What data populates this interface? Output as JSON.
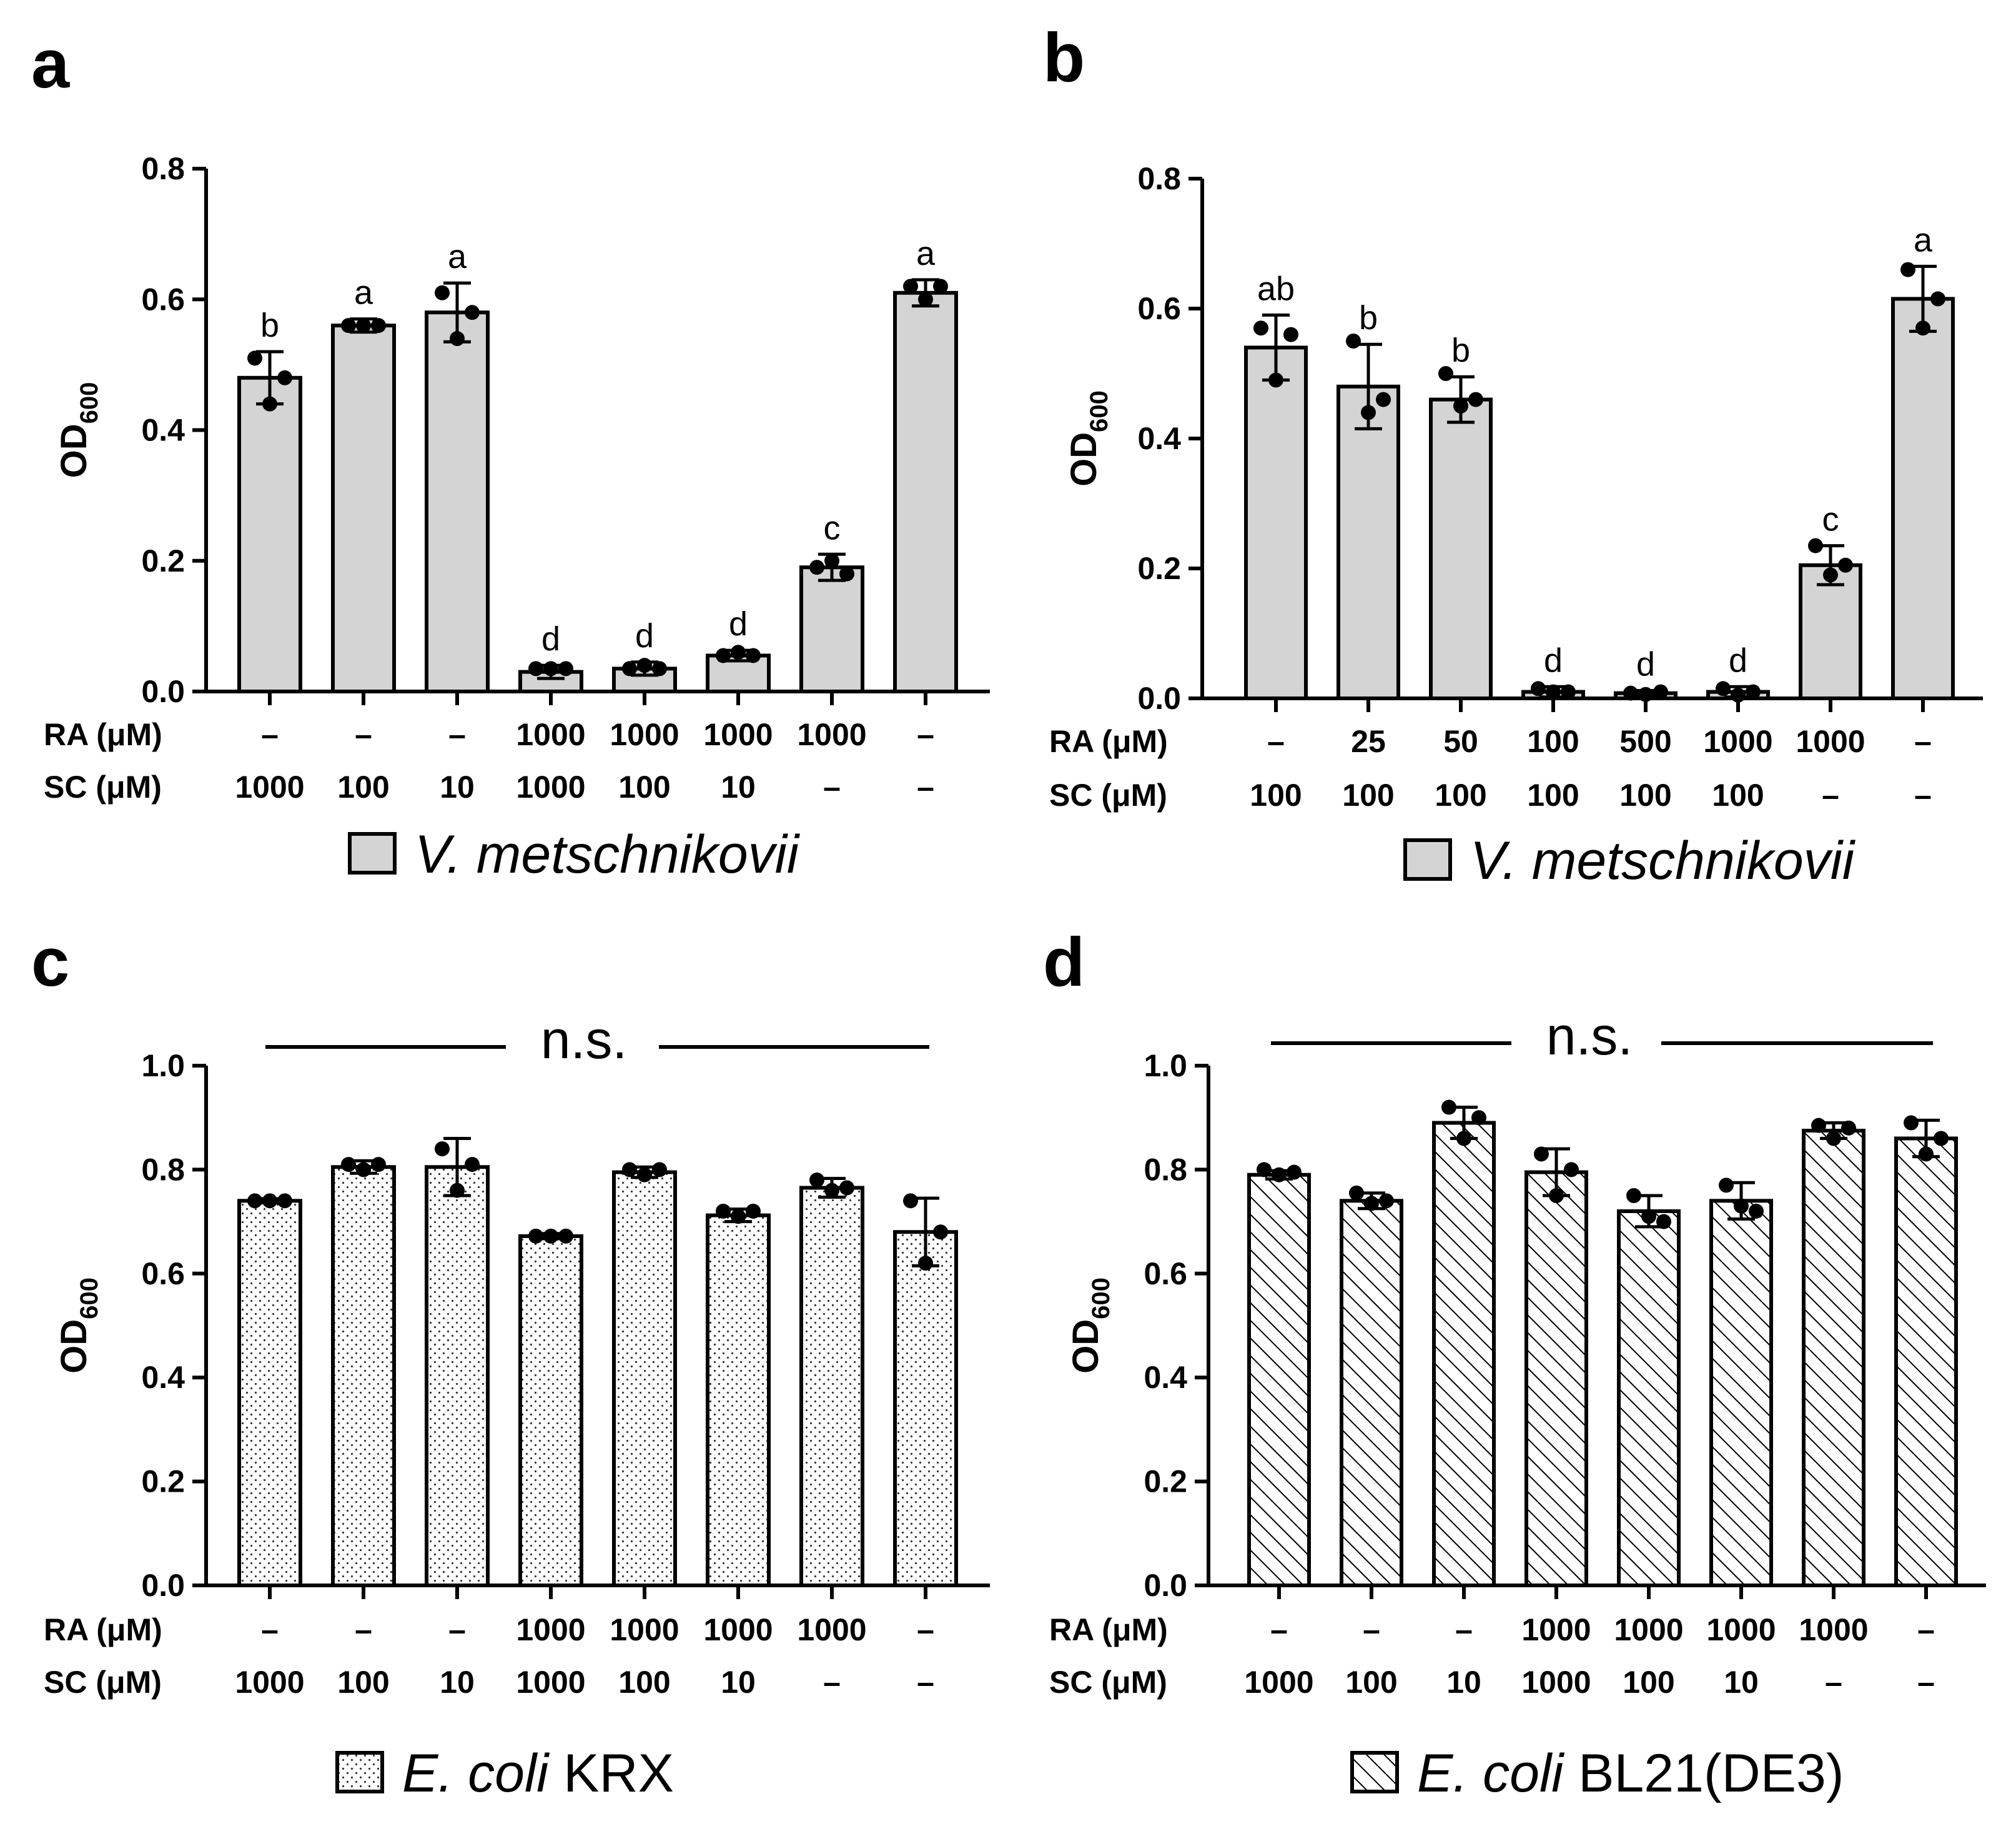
{
  "colors": {
    "bar_fill": "#d4d4d4",
    "stroke": "#000000",
    "background": "#ffffff"
  },
  "chart_data": [
    {
      "panel": "a",
      "type": "bar",
      "pattern": "solid",
      "ylabel": "OD600",
      "ylabel_main": "OD",
      "ylabel_sub": "600",
      "ylim": [
        0,
        0.8
      ],
      "yticks": [
        "0.0",
        "0.2",
        "0.4",
        "0.6",
        "0.8"
      ],
      "row_labels": [
        "RA (μM)",
        "SC (μM)"
      ],
      "ra": [
        "–",
        "–",
        "–",
        "1000",
        "1000",
        "1000",
        "1000",
        "–"
      ],
      "sc": [
        "1000",
        "100",
        "10",
        "1000",
        "100",
        "10",
        "–",
        "–"
      ],
      "values": [
        0.48,
        0.56,
        0.58,
        0.03,
        0.035,
        0.055,
        0.19,
        0.61
      ],
      "errors": [
        0.04,
        0.01,
        0.045,
        0.01,
        0.01,
        0.008,
        0.02,
        0.02
      ],
      "points": [
        [
          0.51,
          0.44,
          0.48
        ],
        [
          0.56,
          0.56,
          0.56
        ],
        [
          0.61,
          0.54,
          0.58
        ],
        [
          0.035,
          0.035,
          0.035
        ],
        [
          0.035,
          0.04,
          0.035
        ],
        [
          0.055,
          0.06,
          0.055
        ],
        [
          0.19,
          0.2,
          0.18
        ],
        [
          0.62,
          0.6,
          0.62
        ]
      ],
      "letters": [
        "b",
        "a",
        "a",
        "d",
        "d",
        "d",
        "c",
        "a"
      ],
      "legend_label_italic": "V. metschnikovii",
      "legend_label_plain": "",
      "ns_label": ""
    },
    {
      "panel": "b",
      "type": "bar",
      "pattern": "solid",
      "ylabel": "OD600",
      "ylabel_main": "OD",
      "ylabel_sub": "600",
      "ylim": [
        0,
        0.8
      ],
      "yticks": [
        "0.0",
        "0.2",
        "0.4",
        "0.6",
        "0.8"
      ],
      "row_labels": [
        "RA (μM)",
        "SC (μM)"
      ],
      "ra": [
        "–",
        "25",
        "50",
        "100",
        "500",
        "1000",
        "1000",
        "–"
      ],
      "sc": [
        "100",
        "100",
        "100",
        "100",
        "100",
        "100",
        "–",
        "–"
      ],
      "values": [
        0.54,
        0.48,
        0.46,
        0.01,
        0.008,
        0.01,
        0.205,
        0.615
      ],
      "errors": [
        0.05,
        0.065,
        0.035,
        0.008,
        0.004,
        0.008,
        0.03,
        0.05
      ],
      "points": [
        [
          0.57,
          0.49,
          0.56
        ],
        [
          0.55,
          0.44,
          0.46
        ],
        [
          0.5,
          0.45,
          0.46
        ],
        [
          0.015,
          0.01,
          0.01
        ],
        [
          0.008,
          0.006,
          0.01
        ],
        [
          0.015,
          0.005,
          0.01
        ],
        [
          0.235,
          0.19,
          0.205
        ],
        [
          0.66,
          0.57,
          0.615
        ]
      ],
      "letters": [
        "ab",
        "b",
        "b",
        "d",
        "d",
        "d",
        "c",
        "a"
      ],
      "legend_label_italic": "V. metschnikovii",
      "legend_label_plain": "",
      "ns_label": ""
    },
    {
      "panel": "c",
      "type": "bar",
      "pattern": "dots",
      "ylabel": "OD600",
      "ylabel_main": "OD",
      "ylabel_sub": "600",
      "ylim": [
        0,
        1.0
      ],
      "yticks": [
        "0.0",
        "0.2",
        "0.4",
        "0.6",
        "0.8",
        "1.0"
      ],
      "row_labels": [
        "RA (μM)",
        "SC (μM)"
      ],
      "ra": [
        "–",
        "–",
        "–",
        "1000",
        "1000",
        "1000",
        "1000",
        "–"
      ],
      "sc": [
        "1000",
        "100",
        "10",
        "1000",
        "100",
        "10",
        "–",
        "–"
      ],
      "values": [
        0.74,
        0.805,
        0.805,
        0.672,
        0.795,
        0.712,
        0.765,
        0.68
      ],
      "errors": [
        0.004,
        0.012,
        0.055,
        0.005,
        0.01,
        0.012,
        0.018,
        0.065
      ],
      "points": [
        [
          0.74,
          0.74,
          0.74
        ],
        [
          0.81,
          0.8,
          0.81
        ],
        [
          0.84,
          0.76,
          0.81
        ],
        [
          0.672,
          0.672,
          0.672
        ],
        [
          0.8,
          0.79,
          0.8
        ],
        [
          0.72,
          0.71,
          0.72
        ],
        [
          0.78,
          0.76,
          0.765
        ],
        [
          0.74,
          0.62,
          0.68
        ]
      ],
      "letters": [],
      "legend_label_italic": "E. coli",
      "legend_label_plain": "KRX",
      "ns_label": "n.s."
    },
    {
      "panel": "d",
      "type": "bar",
      "pattern": "hatch",
      "ylabel": "OD600",
      "ylabel_main": "OD",
      "ylabel_sub": "600",
      "ylim": [
        0,
        1.0
      ],
      "yticks": [
        "0.0",
        "0.2",
        "0.4",
        "0.6",
        "0.8",
        "1.0"
      ],
      "row_labels": [
        "RA (μM)",
        "SC (μM)"
      ],
      "ra": [
        "–",
        "–",
        "–",
        "1000",
        "1000",
        "1000",
        "1000",
        "–"
      ],
      "sc": [
        "1000",
        "100",
        "10",
        "1000",
        "100",
        "10",
        "–",
        "–"
      ],
      "values": [
        0.79,
        0.74,
        0.89,
        0.795,
        0.72,
        0.74,
        0.875,
        0.86
      ],
      "errors": [
        0.008,
        0.015,
        0.03,
        0.045,
        0.03,
        0.035,
        0.015,
        0.035
      ],
      "points": [
        [
          0.8,
          0.79,
          0.795
        ],
        [
          0.755,
          0.735,
          0.74
        ],
        [
          0.92,
          0.86,
          0.9
        ],
        [
          0.83,
          0.75,
          0.8
        ],
        [
          0.75,
          0.71,
          0.7
        ],
        [
          0.77,
          0.73,
          0.72
        ],
        [
          0.885,
          0.86,
          0.88
        ],
        [
          0.89,
          0.83,
          0.86
        ]
      ],
      "letters": [],
      "legend_label_italic": "E. coli",
      "legend_label_plain": "BL21(DE3)",
      "ns_label": "n.s."
    }
  ]
}
